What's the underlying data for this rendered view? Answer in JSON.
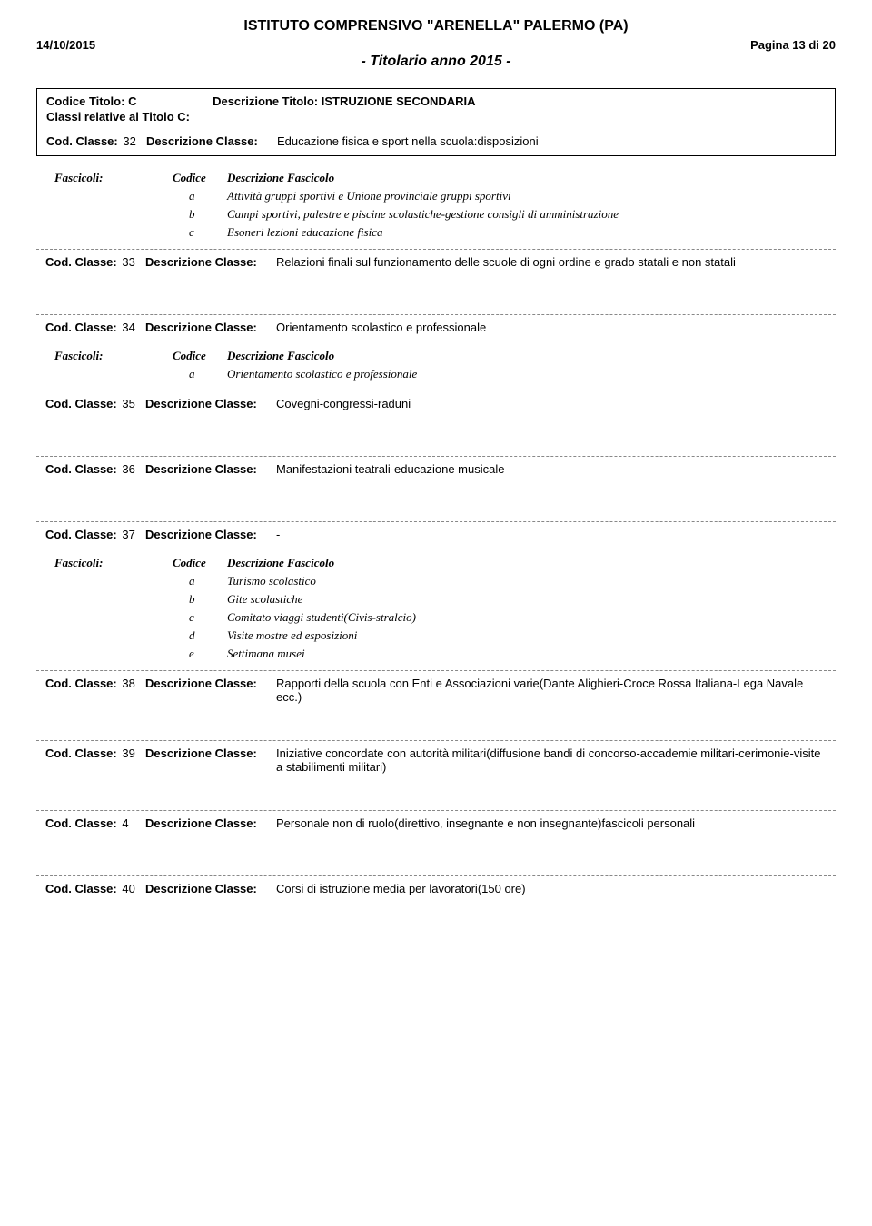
{
  "header": {
    "institution": "ISTITUTO COMPRENSIVO \"ARENELLA\" PALERMO (PA)",
    "date": "14/10/2015",
    "page": "Pagina 13 di 20",
    "subtitle": "- Titolario anno 2015 -"
  },
  "titolo": {
    "code_label": "Codice Titolo:",
    "code": "C",
    "desc_label": "Descrizione Titolo:",
    "desc": "ISTRUZIONE SECONDARIA",
    "classi_label": "Classi relative al Titolo C:"
  },
  "labels": {
    "cod_classe": "Cod. Classe:",
    "desc_classe": "Descrizione Classe:",
    "fascicoli": "Fascicoli:",
    "codice": "Codice",
    "desc_fascicolo": "Descrizione Fascicolo"
  },
  "classi": {
    "c32": {
      "num": "32",
      "desc": "Educazione fisica e sport nella scuola:disposizioni",
      "fascicoli": [
        {
          "code": "a",
          "text": "Attività gruppi sportivi e Unione provinciale gruppi sportivi"
        },
        {
          "code": "b",
          "text": "Campi sportivi, palestre e piscine scolastiche-gestione consigli di amministrazione"
        },
        {
          "code": "c",
          "text": "Esoneri lezioni educazione fisica"
        }
      ]
    },
    "c33": {
      "num": "33",
      "desc": "Relazioni finali sul funzionamento delle scuole di ogni ordine e grado statali e non statali"
    },
    "c34": {
      "num": "34",
      "desc": "Orientamento scolastico e professionale",
      "fascicoli": [
        {
          "code": "a",
          "text": "Orientamento scolastico e professionale"
        }
      ]
    },
    "c35": {
      "num": "35",
      "desc": "Covegni-congressi-raduni"
    },
    "c36": {
      "num": "36",
      "desc": "Manifestazioni teatrali-educazione musicale"
    },
    "c37": {
      "num": "37",
      "desc": "-",
      "fascicoli": [
        {
          "code": "a",
          "text": "Turismo scolastico"
        },
        {
          "code": "b",
          "text": "Gite scolastiche"
        },
        {
          "code": "c",
          "text": "Comitato viaggi studenti(Civis-stralcio)"
        },
        {
          "code": "d",
          "text": "Visite mostre ed esposizioni"
        },
        {
          "code": "e",
          "text": "Settimana musei"
        }
      ]
    },
    "c38": {
      "num": "38",
      "desc": "Rapporti della scuola con Enti e Associazioni varie(Dante Alighieri-Croce Rossa Italiana-Lega Navale ecc.)"
    },
    "c39": {
      "num": "39",
      "desc": "Iniziative concordate con autorità militari(diffusione bandi di concorso-accademie militari-cerimonie-visite a stabilimenti militari)"
    },
    "c4": {
      "num": "4",
      "desc": "Personale non di ruolo(direttivo, insegnante e non insegnante)fascicoli personali"
    },
    "c40": {
      "num": "40",
      "desc": "Corsi di istruzione media per lavoratori(150 ore)"
    }
  }
}
